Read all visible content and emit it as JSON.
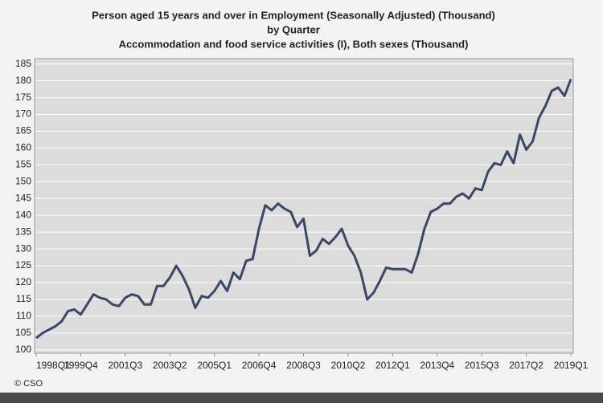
{
  "chart_data": {
    "type": "line",
    "title_lines": [
      "Person aged 15 years and over in Employment (Seasonally Adjusted) (Thousand)",
      "by Quarter",
      "Accommodation and food service activities (I), Both sexes (Thousand)"
    ],
    "source": "© CSO",
    "categories": [
      "1998Q1",
      null,
      null,
      null,
      null,
      null,
      null,
      "1999Q4",
      null,
      null,
      null,
      null,
      null,
      null,
      "2001Q3",
      null,
      null,
      null,
      null,
      null,
      null,
      "2003Q2",
      null,
      null,
      null,
      null,
      null,
      null,
      "2005Q1",
      null,
      null,
      null,
      null,
      null,
      null,
      "2006Q4",
      null,
      null,
      null,
      null,
      null,
      null,
      "2008Q3",
      null,
      null,
      null,
      null,
      null,
      null,
      "2010Q2",
      null,
      null,
      null,
      null,
      null,
      null,
      "2012Q1",
      null,
      null,
      null,
      null,
      null,
      null,
      "2013Q4",
      null,
      null,
      null,
      null,
      null,
      null,
      "2015Q3",
      null,
      null,
      null,
      null,
      null,
      null,
      "2017Q2",
      null,
      null,
      null,
      null,
      null,
      null,
      "2019Q1"
    ],
    "values": [
      103.5,
      105,
      106,
      107,
      108.5,
      111.5,
      112,
      110.5,
      113.5,
      116.5,
      115.5,
      115,
      113.5,
      113,
      115.5,
      116.5,
      116,
      113.5,
      113.5,
      119,
      119,
      121.5,
      125,
      122,
      118,
      112.5,
      116,
      115.5,
      117.5,
      120.5,
      117.5,
      123,
      121,
      126.5,
      127,
      136,
      143,
      141.5,
      143.5,
      142,
      141,
      136.5,
      139,
      128,
      129.5,
      133,
      131.5,
      133.5,
      136,
      131,
      128,
      123,
      115,
      117,
      120.5,
      124.5,
      124,
      124,
      124,
      123,
      128.5,
      136,
      141,
      142,
      143.5,
      143.5,
      145.5,
      146.5,
      145,
      148,
      147.5,
      153,
      155.5,
      155,
      159,
      155.5,
      164,
      159.5,
      162,
      169,
      172.5,
      177,
      178,
      175.5,
      180.5
    ],
    "color": "#3b4767",
    "ylim": [
      99,
      186.6
    ],
    "yticks": [
      100,
      105,
      110,
      115,
      120,
      125,
      130,
      135,
      140,
      145,
      150,
      155,
      160,
      165,
      170,
      175,
      180,
      185
    ],
    "grid": true
  }
}
